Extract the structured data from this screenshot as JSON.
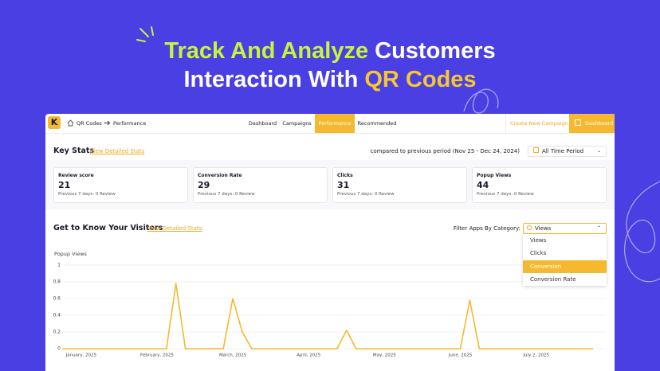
{
  "headline": {
    "line1_accent": "Track And Analyze",
    "line1_rest": "Customers",
    "line2_rest": "Interaction With",
    "line2_accent": "QR Codes"
  },
  "nav": {
    "logo": "K",
    "breadcrumb": [
      "QR Codes",
      "Performance"
    ],
    "tabs": [
      "Dashboard",
      "Campaigns",
      "Performance",
      "Recommended"
    ],
    "active_tab": "Performance",
    "create": "Create New Campaign",
    "dashboard": "Dashboard"
  },
  "key_stats": {
    "title": "Key Stats",
    "link": "View Detailed Stats",
    "comparison": "compared to previous period (Nov 25 - Dec 24, 2024)",
    "period": "All Time Period",
    "cards": [
      {
        "label": "Review score",
        "value": 21,
        "note": "Previous 7 days: 0 Review"
      },
      {
        "label": "Conversion Rate",
        "value": 29,
        "note": "Previous 7 days: 0 Review"
      },
      {
        "label": "Clicks",
        "value": 31,
        "note": "Previous 7 days: 0 Review"
      },
      {
        "label": "Popup Views",
        "value": 44,
        "note": "Previous 7 days: 0 Review"
      }
    ]
  },
  "visitors": {
    "title": "Get to Know Your Visitors",
    "link": "View Detailed Stats",
    "filter_label": "Filter Apps By Category:",
    "selected": "Views",
    "options": [
      "Views",
      "Clicks",
      "Conversion",
      "Conversion Rate"
    ],
    "highlighted": "Conversion"
  },
  "chart_data": {
    "type": "line",
    "y_label": "Popup Views",
    "color": "#f5b82e",
    "grid": true,
    "categories": [
      null,
      null,
      "January, 2025",
      null,
      null,
      null,
      null,
      null,
      null,
      null,
      "February, 2025",
      null,
      null,
      null,
      null,
      null,
      null,
      null,
      "March, 2025",
      null,
      null,
      null,
      null,
      null,
      null,
      null,
      "April, 2025",
      null,
      null,
      null,
      null,
      null,
      null,
      null,
      "May, 2025",
      null,
      null,
      null,
      null,
      null,
      null,
      null,
      "June, 2025",
      null,
      null,
      null,
      null,
      null,
      null,
      null,
      "July 2, 2025",
      null,
      null,
      null,
      null,
      null,
      null
    ],
    "values": [
      0,
      0,
      0,
      0,
      0,
      0,
      0,
      0,
      0,
      0,
      0,
      0,
      0.78,
      0,
      0,
      0,
      0,
      0,
      0.6,
      0.2,
      0,
      0,
      0,
      0,
      0,
      0,
      0,
      0,
      0,
      0,
      0.22,
      0,
      0,
      0,
      0,
      0,
      0,
      0,
      0,
      0,
      0,
      0,
      0,
      0.58,
      0,
      0,
      0,
      0,
      0,
      0,
      0,
      0,
      0,
      0,
      0,
      0,
      0
    ],
    "ylim": [
      0,
      1
    ],
    "yticks": [
      0,
      0.2,
      0.4,
      0.6,
      0.8,
      1
    ]
  }
}
